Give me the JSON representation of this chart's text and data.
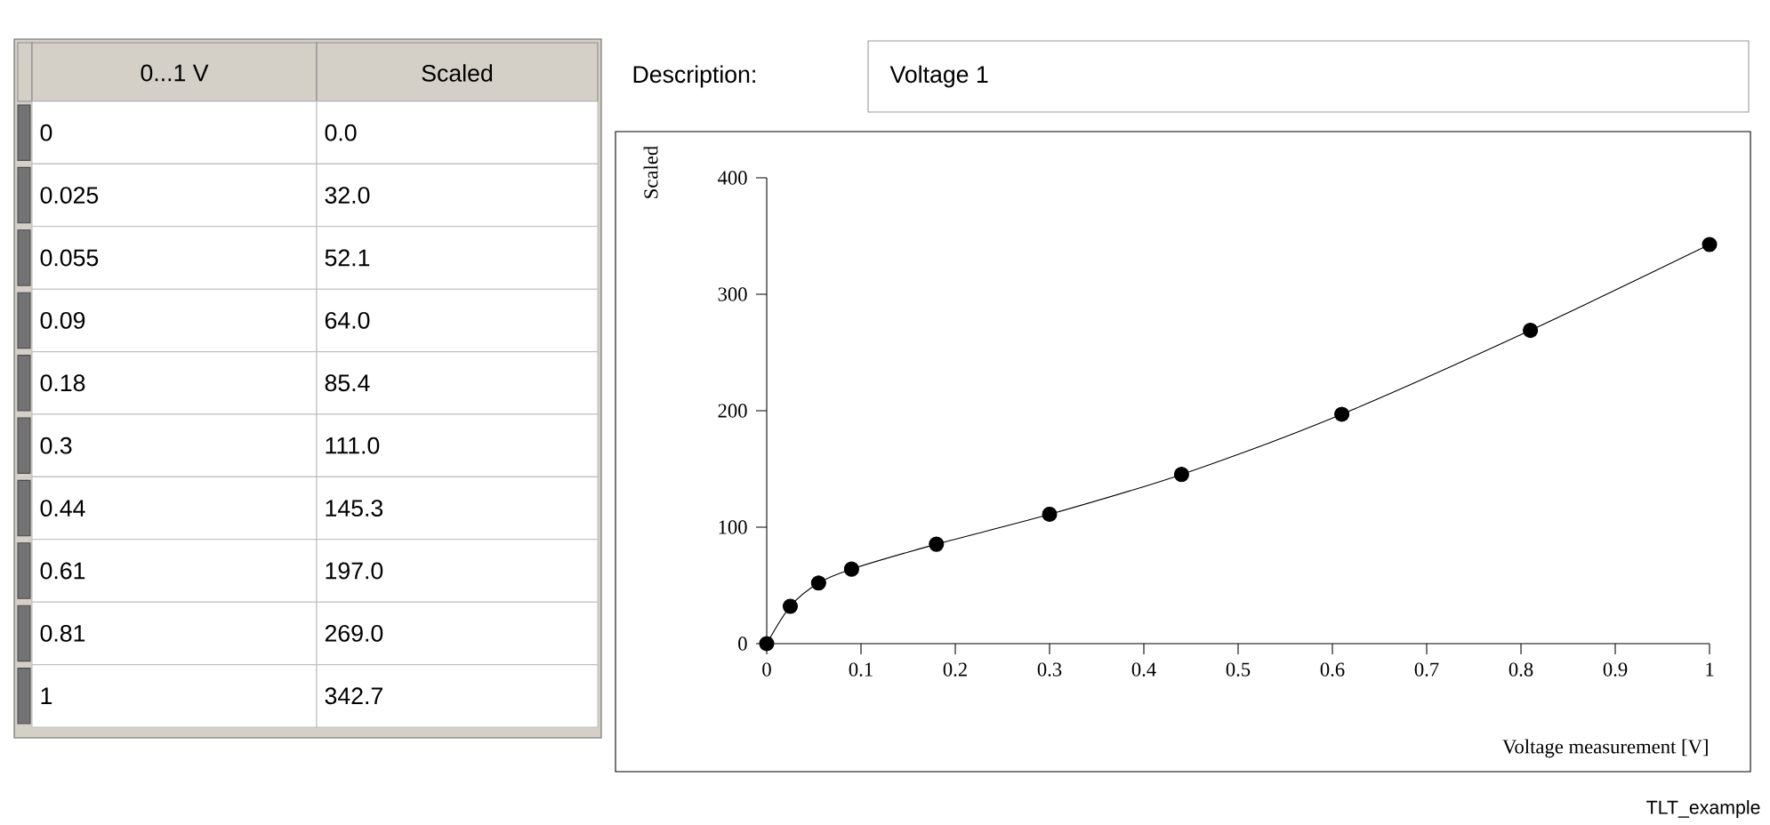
{
  "chart_data": {
    "type": "line",
    "xlabel": "Voltage measurement [V]",
    "ylabel": "Scaled",
    "x": [
      0,
      0.025,
      0.055,
      0.09,
      0.18,
      0.3,
      0.44,
      0.61,
      0.81,
      1
    ],
    "values": [
      0.0,
      32.0,
      52.1,
      64.0,
      85.4,
      111.0,
      145.3,
      197.0,
      269.0,
      342.7
    ],
    "color": "#000000",
    "marker": "circle",
    "line_style": "solid",
    "grid": false,
    "xlim": [
      0,
      1
    ],
    "ylim": [
      0,
      400
    ],
    "xticks": [
      0,
      0.1,
      0.2,
      0.3,
      0.4,
      0.5,
      0.6,
      0.7,
      0.8,
      0.9,
      1
    ],
    "yticks": [
      0,
      100,
      200,
      300,
      400
    ],
    "annotations": [
      "0...1 V",
      "Scaled",
      "Description:",
      "Voltage 1",
      "TLT_example",
      "0",
      "0.025",
      "0.055",
      "0.09",
      "0.18",
      "0.3",
      "0.44",
      "0.61",
      "0.81",
      "1",
      "0.0",
      "32.0",
      "52.1",
      "64.0",
      "85.4",
      "111.0",
      "145.3",
      "197.0",
      "269.0",
      "342.7"
    ]
  }
}
